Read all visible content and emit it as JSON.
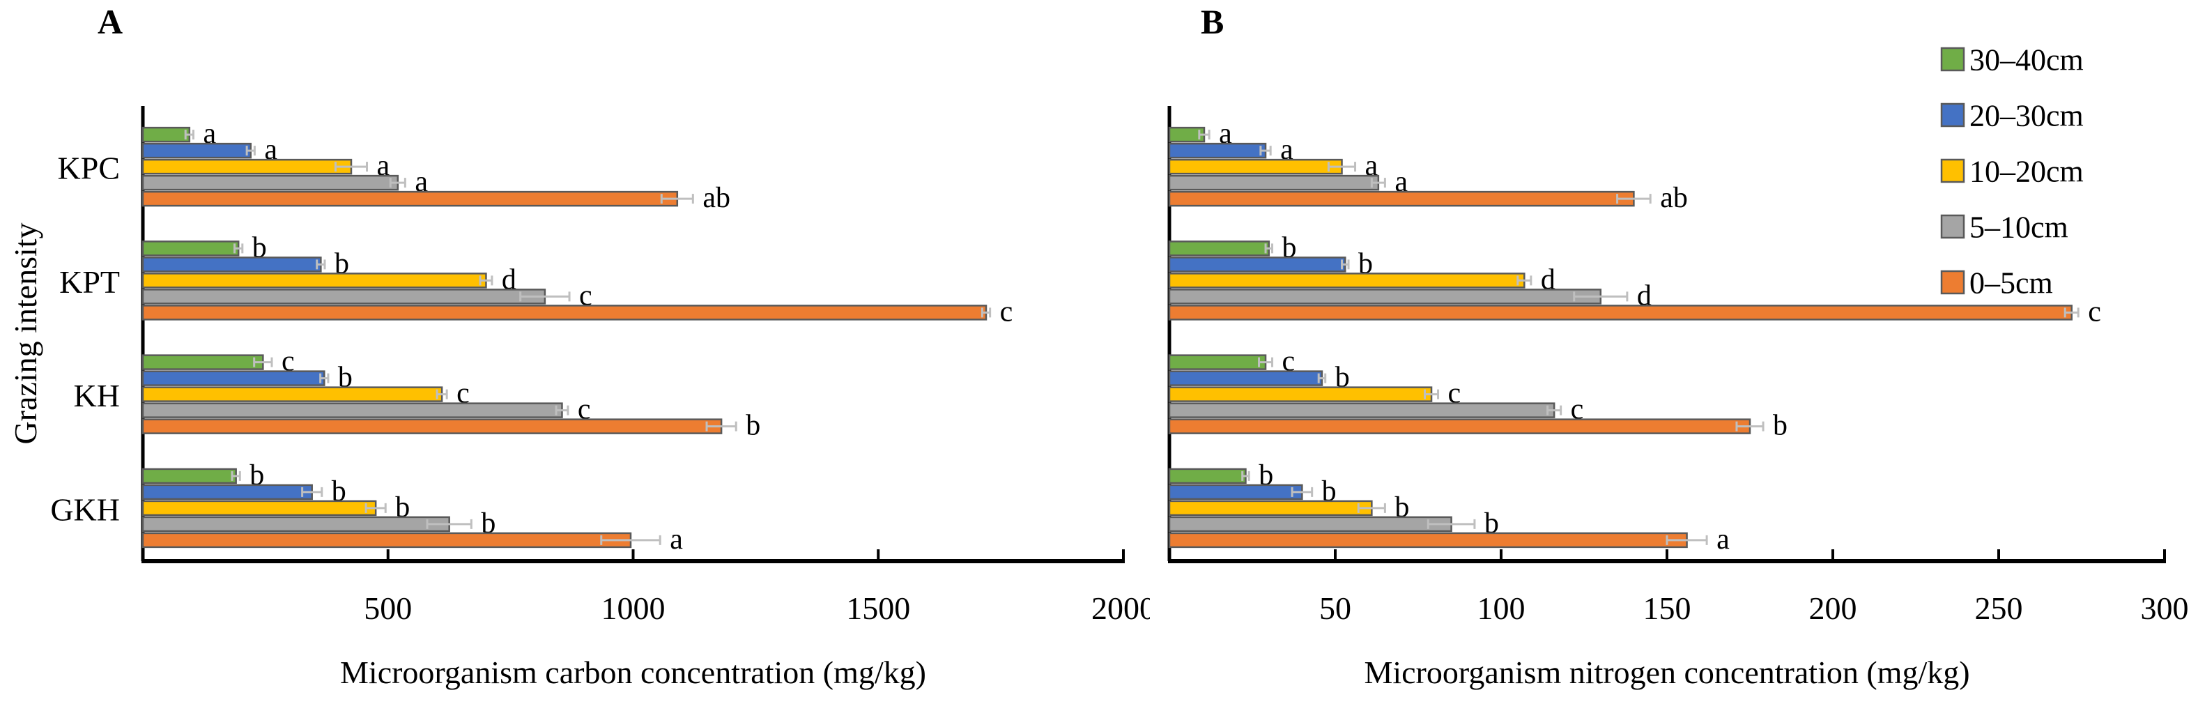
{
  "figure": {
    "background": "#FFFFFF",
    "axis_color": "#000000",
    "text_color": "#000000",
    "bar_border_color": "#595959",
    "error_bar_color": "#BFBFBF"
  },
  "legend": {
    "position": "top-right-of-panel-B",
    "items": [
      {
        "label": "30–40cm",
        "color": "#70AD47"
      },
      {
        "label": "20–30cm",
        "color": "#4472C4"
      },
      {
        "label": "10–20cm",
        "color": "#FFC000"
      },
      {
        "label": "5–10cm",
        "color": "#A5A5A5"
      },
      {
        "label": "0–5cm",
        "color": "#ED7D31"
      }
    ]
  },
  "chart_data": [
    {
      "type": "bar",
      "orientation": "horizontal",
      "panel_label": "A",
      "xlabel": "Microorganism carbon concentration (mg/kg)",
      "ylabel": "Grazing intensity",
      "xlim": [
        0,
        2000
      ],
      "xticks": [
        500,
        1000,
        1500,
        2000
      ],
      "categories": [
        "KPC",
        "KPT",
        "KH",
        "GKH"
      ],
      "grid": false,
      "series": [
        {
          "name": "30–40cm",
          "color": "#70AD47",
          "values": [
            95,
            195,
            245,
            190
          ],
          "errors": [
            8,
            8,
            18,
            8
          ],
          "letters": [
            "a",
            "b",
            "c",
            "b"
          ]
        },
        {
          "name": "20–30cm",
          "color": "#4472C4",
          "values": [
            220,
            363,
            370,
            345
          ],
          "errors": [
            8,
            8,
            8,
            20
          ],
          "letters": [
            "a",
            "b",
            "b",
            "b"
          ]
        },
        {
          "name": "10–20cm",
          "color": "#FFC000",
          "values": [
            425,
            700,
            610,
            475
          ],
          "errors": [
            32,
            12,
            10,
            20
          ],
          "letters": [
            "a",
            "d",
            "c",
            "b"
          ]
        },
        {
          "name": "5–10cm",
          "color": "#A5A5A5",
          "values": [
            520,
            820,
            855,
            625
          ],
          "errors": [
            15,
            50,
            12,
            45
          ],
          "letters": [
            "a",
            "c",
            "c",
            "b"
          ]
        },
        {
          "name": "0–5cm",
          "color": "#ED7D31",
          "values": [
            1090,
            1720,
            1180,
            995
          ],
          "errors": [
            32,
            8,
            30,
            60
          ],
          "letters": [
            "ab",
            "c",
            "b",
            "a"
          ]
        }
      ]
    },
    {
      "type": "bar",
      "orientation": "horizontal",
      "panel_label": "B",
      "xlabel": "Microorganism nitrogen concentration (mg/kg)",
      "ylabel": "",
      "xlim": [
        0,
        300
      ],
      "xticks": [
        50,
        100,
        150,
        200,
        250,
        300
      ],
      "categories": [
        "KPC",
        "KPT",
        "KH",
        "GKH"
      ],
      "grid": false,
      "series": [
        {
          "name": "30–40cm",
          "color": "#70AD47",
          "values": [
            10.5,
            30,
            29,
            23
          ],
          "errors": [
            1.5,
            1,
            2,
            1
          ],
          "letters": [
            "a",
            "b",
            "c",
            "b"
          ]
        },
        {
          "name": "20–30cm",
          "color": "#4472C4",
          "values": [
            29,
            53,
            46,
            40
          ],
          "errors": [
            1.5,
            1,
            1,
            3
          ],
          "letters": [
            "a",
            "b",
            "b",
            "b"
          ]
        },
        {
          "name": "10–20cm",
          "color": "#FFC000",
          "values": [
            52,
            107,
            79,
            61
          ],
          "errors": [
            4,
            2,
            2,
            4
          ],
          "letters": [
            "a",
            "d",
            "c",
            "b"
          ]
        },
        {
          "name": "5–10cm",
          "color": "#A5A5A5",
          "values": [
            63,
            130,
            116,
            85
          ],
          "errors": [
            2,
            8,
            2,
            7
          ],
          "letters": [
            "a",
            "d",
            "c",
            "b"
          ]
        },
        {
          "name": "0–5cm",
          "color": "#ED7D31",
          "values": [
            140,
            272,
            175,
            156
          ],
          "errors": [
            5,
            2,
            4,
            6
          ],
          "letters": [
            "ab",
            "c",
            "b",
            "a"
          ]
        }
      ]
    }
  ]
}
